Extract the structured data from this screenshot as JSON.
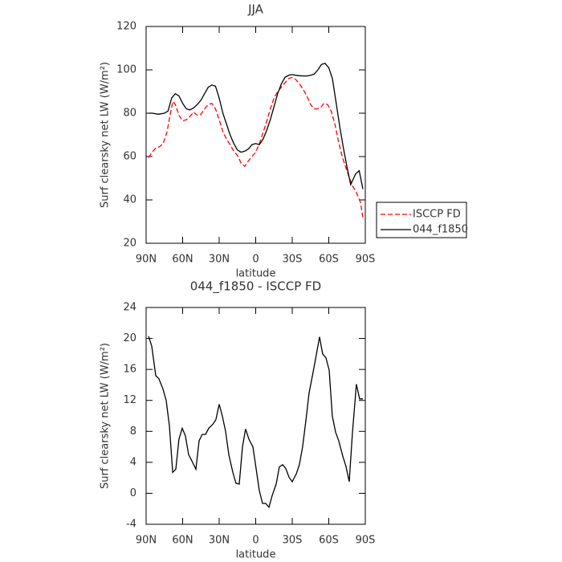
{
  "chart_data": [
    {
      "type": "line",
      "title": "JJA",
      "xlabel": "latitude",
      "ylabel": "Surf clearsky net LW (W/m²)",
      "xlim": [
        90,
        -90
      ],
      "ylim": [
        20,
        120
      ],
      "xticks": [
        {
          "value": 90,
          "label": "90N"
        },
        {
          "value": 60,
          "label": "60N"
        },
        {
          "value": 30,
          "label": "30N"
        },
        0,
        {
          "value": -30,
          "label": "30S"
        },
        {
          "value": -60,
          "label": "60S"
        },
        {
          "value": -90,
          "label": "90S"
        }
      ],
      "yticks": [
        20,
        40,
        60,
        80,
        100,
        120
      ],
      "legend": "right",
      "series": [
        {
          "name": "ISCCP FD",
          "color": "#ff0000",
          "dashed": true,
          "x": [
            88,
            85,
            82,
            79,
            76,
            73,
            70,
            68,
            66,
            63,
            60,
            57,
            54,
            51,
            48,
            45,
            42,
            39,
            36,
            33,
            30,
            27,
            24,
            21,
            18,
            15,
            12,
            9,
            6,
            3,
            0,
            -3,
            -6,
            -9,
            -12,
            -15,
            -18,
            -21,
            -24,
            -27,
            -30,
            -33,
            -36,
            -39,
            -42,
            -45,
            -48,
            -51,
            -54,
            -56,
            -59,
            -62,
            -65,
            -68,
            -71,
            -74,
            -77,
            -80,
            -83,
            -86,
            -88
          ],
          "values": [
            59.5,
            62,
            64,
            64.5,
            66,
            71,
            80,
            85.5,
            84,
            79,
            76.5,
            77,
            78.5,
            80.5,
            79,
            79.5,
            82,
            84,
            84.5,
            82,
            77,
            71.5,
            68,
            65.5,
            62.5,
            60.5,
            57,
            55.5,
            58,
            60,
            62,
            66,
            71,
            76,
            82,
            87,
            90,
            92,
            94,
            96,
            96.5,
            95.5,
            93.5,
            91,
            88,
            84,
            82,
            82,
            83,
            84.5,
            84,
            81,
            75,
            67,
            60,
            55,
            50,
            46,
            43,
            39,
            32
          ]
        },
        {
          "name": "044_f1850",
          "color": "#000000",
          "dashed": false,
          "x": [
            88,
            85,
            80,
            75,
            72,
            69,
            66,
            63,
            60,
            57,
            54,
            51,
            48,
            45,
            42,
            39,
            36,
            33,
            30,
            27,
            24,
            21,
            18,
            15,
            12,
            9,
            6,
            3,
            0,
            -3,
            -6,
            -9,
            -12,
            -15,
            -18,
            -21,
            -24,
            -27,
            -30,
            -33,
            -36,
            -39,
            -42,
            -45,
            -48,
            -51,
            -54,
            -57,
            -60,
            -63,
            -66,
            -69,
            -72,
            -75,
            -78,
            -82,
            -85,
            -88
          ],
          "values": [
            80,
            80,
            79.5,
            80,
            81,
            87,
            89,
            88,
            84.5,
            82,
            81.5,
            82.5,
            84,
            86,
            89,
            92,
            93,
            92.5,
            87,
            80,
            75,
            70,
            66,
            63,
            62,
            62.5,
            63.5,
            65.5,
            66,
            65.5,
            68,
            72,
            77,
            83,
            89,
            93.5,
            96.5,
            97.5,
            97.8,
            97.5,
            97.3,
            97.2,
            97.2,
            97.5,
            98,
            100,
            102.5,
            103,
            101,
            96,
            85,
            74,
            64,
            55,
            47,
            52,
            53.5,
            45
          ]
        }
      ]
    },
    {
      "type": "line",
      "title": "044_f1850 - ISCCP FD",
      "xlabel": "latitude",
      "ylabel": "Surf clearsky net LW (W/m²)",
      "xlim": [
        90,
        -90
      ],
      "ylim": [
        -4,
        24
      ],
      "xticks": [
        {
          "value": 90,
          "label": "90N"
        },
        {
          "value": 60,
          "label": "60N"
        },
        {
          "value": 30,
          "label": "30N"
        },
        0,
        {
          "value": -30,
          "label": "30S"
        },
        {
          "value": -60,
          "label": "60S"
        },
        {
          "value": -90,
          "label": "90S"
        }
      ],
      "yticks": [
        -4,
        0,
        4,
        8,
        12,
        16,
        20,
        24
      ],
      "color": "#000000",
      "x": [
        88,
        85.4,
        82.1,
        79.5,
        76.2,
        73.5,
        70.9,
        68.2,
        65.6,
        63,
        60.3,
        57.7,
        55.1,
        51.8,
        49.1,
        46.5,
        43.9,
        41.2,
        38.6,
        35.3,
        32.7,
        30,
        27.4,
        24.7,
        22.1,
        18.8,
        16.2,
        13.5,
        10.9,
        8.3,
        5.6,
        2.3,
        -0.3,
        -2.9,
        -5.6,
        -8.2,
        -10.9,
        -13.5,
        -16.8,
        -19.4,
        -22.1,
        -24.7,
        -27.3,
        -30,
        -33.3,
        -35.9,
        -38.5,
        -41.2,
        -43.8,
        -47.1,
        -49.8,
        -52.4,
        -55,
        -57.7,
        -60.3,
        -62.9,
        -65.6,
        -68.2,
        -71.5,
        -74.1,
        -76.8,
        -79.4,
        -82.7,
        -85.3,
        -88
      ],
      "values": [
        20.3,
        19,
        15.2,
        14.8,
        13.5,
        12,
        8.7,
        2.7,
        3.1,
        7,
        8.4,
        7.4,
        5,
        4,
        3.1,
        6.8,
        7.6,
        7.6,
        8.4,
        8.9,
        9.5,
        11.5,
        10,
        8,
        5,
        2.7,
        1.3,
        1.2,
        6,
        8.3,
        7,
        6,
        3.2,
        0.4,
        -1.3,
        -1.3,
        -1.8,
        -0.3,
        1.2,
        3.4,
        3.7,
        3.2,
        2.1,
        1.5,
        2.5,
        3.7,
        6,
        9.4,
        12.9,
        15.6,
        17.9,
        20.2,
        18,
        17.5,
        15.9,
        10,
        7.9,
        6.8,
        4.8,
        3.5,
        1.5,
        7.7,
        14.1,
        12.2,
        12.2
      ]
    }
  ]
}
